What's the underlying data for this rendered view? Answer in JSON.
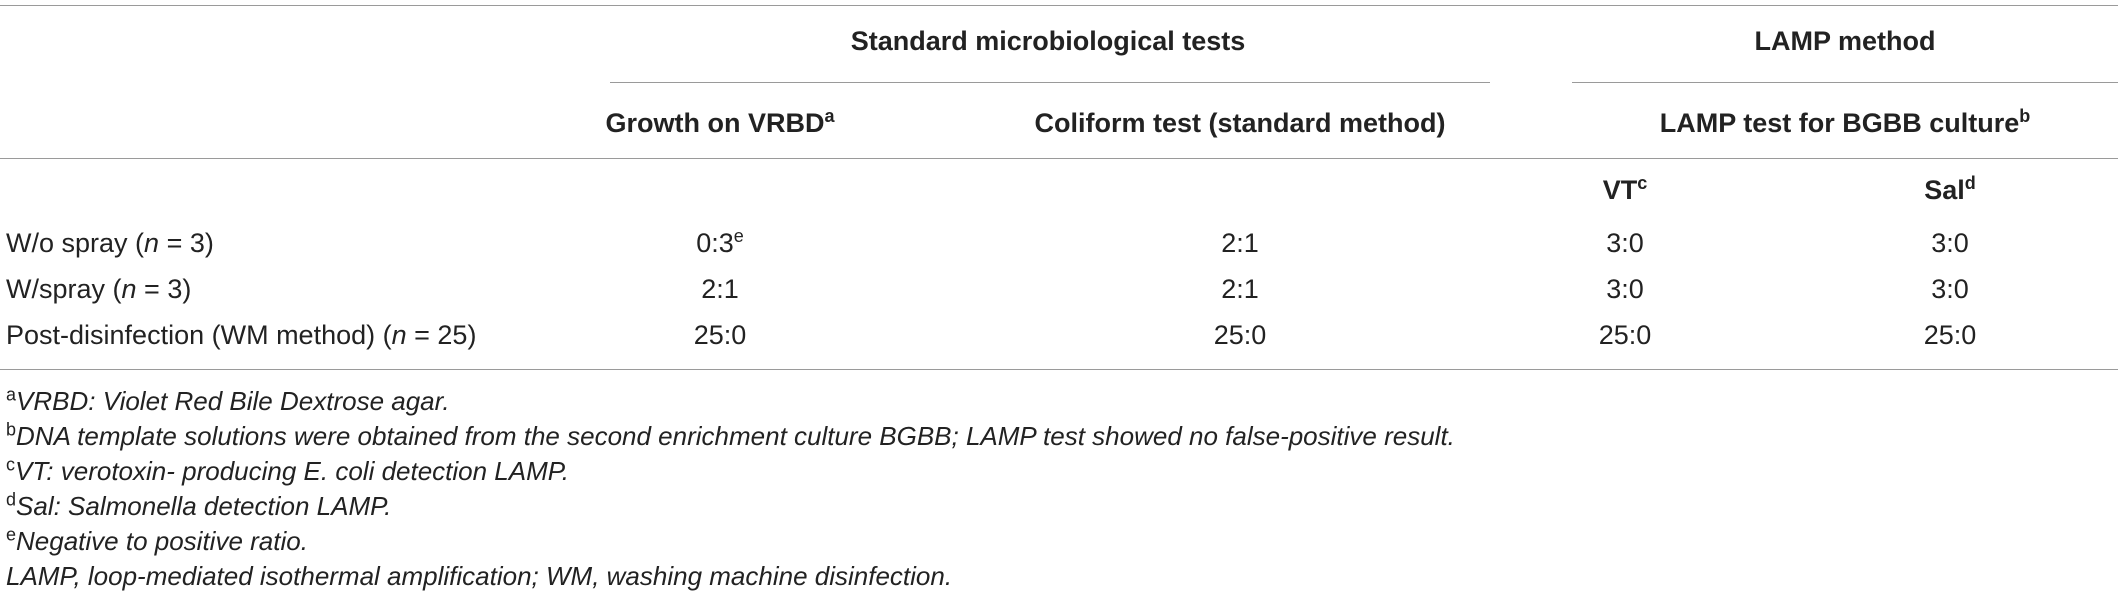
{
  "headers": {
    "group_standard": "Standard microbiological tests",
    "group_lamp": "LAMP method",
    "col_growth": "Growth on VRBD",
    "col_growth_sup": "a",
    "col_coliform": "Coliform test (standard method)",
    "col_lamp_bgbb": "LAMP test for BGBB culture",
    "col_lamp_bgbb_sup": "b",
    "col_vt": "VT",
    "col_vt_sup": "c",
    "col_sal": "Sal",
    "col_sal_sup": "d"
  },
  "rows": [
    {
      "label": "W/o spray (",
      "n": "n",
      "label_tail": " = 3)",
      "growth": "0:3",
      "growth_sup": "e",
      "coliform": "2:1",
      "vt": "3:0",
      "sal": "3:0"
    },
    {
      "label": "W/spray (",
      "n": "n",
      "label_tail": " = 3)",
      "growth": "2:1",
      "growth_sup": "",
      "coliform": "2:1",
      "vt": "3:0",
      "sal": "3:0"
    },
    {
      "label": "Post-disinfection (WM method) (",
      "n": "n",
      "label_tail": " = 25)",
      "growth": "25:0",
      "growth_sup": "",
      "coliform": "25:0",
      "vt": "25:0",
      "sal": "25:0"
    }
  ],
  "footnotes": [
    {
      "sup": "a",
      "text": "VRBD: Violet Red Bile Dextrose agar."
    },
    {
      "sup": "b",
      "text": "DNA template solutions were obtained from the second enrichment culture BGBB; LAMP test showed no false-positive result."
    },
    {
      "sup": "c",
      "text": "VT: verotoxin- producing E. coli detection LAMP."
    },
    {
      "sup": "d",
      "text": "Sal: Salmonella detection LAMP."
    },
    {
      "sup": "e",
      "text": "Negative to positive ratio."
    },
    {
      "sup": "",
      "text": "LAMP, loop-mediated isothermal amplification; WM, washing machine disinfection."
    }
  ]
}
